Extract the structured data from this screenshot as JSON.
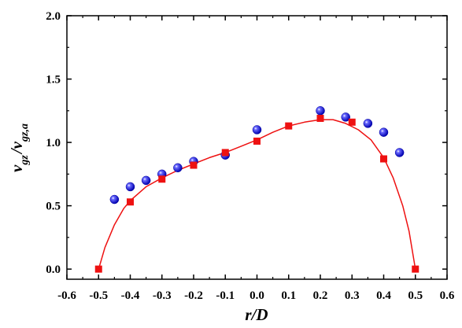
{
  "chart_data": {
    "type": "scatter",
    "xlabel": "r/D",
    "ylabel": {
      "main_a": "v",
      "sub_a": "gz",
      "slash": "/",
      "main_b": "v",
      "sub_b": "gz,a"
    },
    "xlim": [
      -0.6,
      0.6
    ],
    "ylim": [
      -0.08,
      2.0
    ],
    "x_ticks": [
      -0.6,
      -0.5,
      -0.4,
      -0.3,
      -0.2,
      -0.1,
      0.0,
      0.1,
      0.2,
      0.3,
      0.4,
      0.5,
      0.6
    ],
    "x_tick_labels": [
      "-0.6",
      "-0.5",
      "-0.4",
      "-0.3",
      "-0.2",
      "-0.1",
      "0.0",
      "0.1",
      "0.2",
      "0.3",
      "0.4",
      "0.5",
      "0.6"
    ],
    "y_ticks": [
      0.0,
      0.5,
      1.0,
      1.5,
      2.0
    ],
    "y_tick_labels": [
      "0.0",
      "0.5",
      "1.0",
      "1.5",
      "2.0"
    ],
    "grid": false,
    "legend": "none",
    "series": [
      {
        "marker": "sphere",
        "color": "#1010d8",
        "x": [
          -0.45,
          -0.4,
          -0.35,
          -0.3,
          -0.25,
          -0.2,
          -0.1,
          0.0,
          0.2,
          0.28,
          0.35,
          0.4,
          0.45
        ],
        "y": [
          0.55,
          0.65,
          0.7,
          0.75,
          0.8,
          0.85,
          0.9,
          1.1,
          1.25,
          1.2,
          1.15,
          1.08,
          0.92
        ]
      },
      {
        "marker": "square",
        "color": "#ee1111",
        "x": [
          -0.5,
          -0.4,
          -0.3,
          -0.2,
          -0.1,
          0.0,
          0.1,
          0.2,
          0.3,
          0.4,
          0.5
        ],
        "y": [
          0.0,
          0.53,
          0.71,
          0.82,
          0.92,
          1.01,
          1.13,
          1.19,
          1.16,
          0.87,
          0.0
        ]
      }
    ],
    "fit_curve": {
      "color": "#ee1111",
      "x": [
        -0.5,
        -0.48,
        -0.45,
        -0.42,
        -0.4,
        -0.35,
        -0.3,
        -0.25,
        -0.2,
        -0.15,
        -0.1,
        -0.05,
        0.0,
        0.05,
        0.1,
        0.15,
        0.2,
        0.24,
        0.28,
        0.32,
        0.36,
        0.4,
        0.43,
        0.46,
        0.48,
        0.5
      ],
      "y": [
        0.0,
        0.17,
        0.35,
        0.48,
        0.54,
        0.65,
        0.72,
        0.78,
        0.83,
        0.88,
        0.92,
        0.97,
        1.02,
        1.08,
        1.13,
        1.16,
        1.18,
        1.18,
        1.15,
        1.1,
        1.02,
        0.88,
        0.72,
        0.5,
        0.3,
        0.0
      ]
    }
  }
}
